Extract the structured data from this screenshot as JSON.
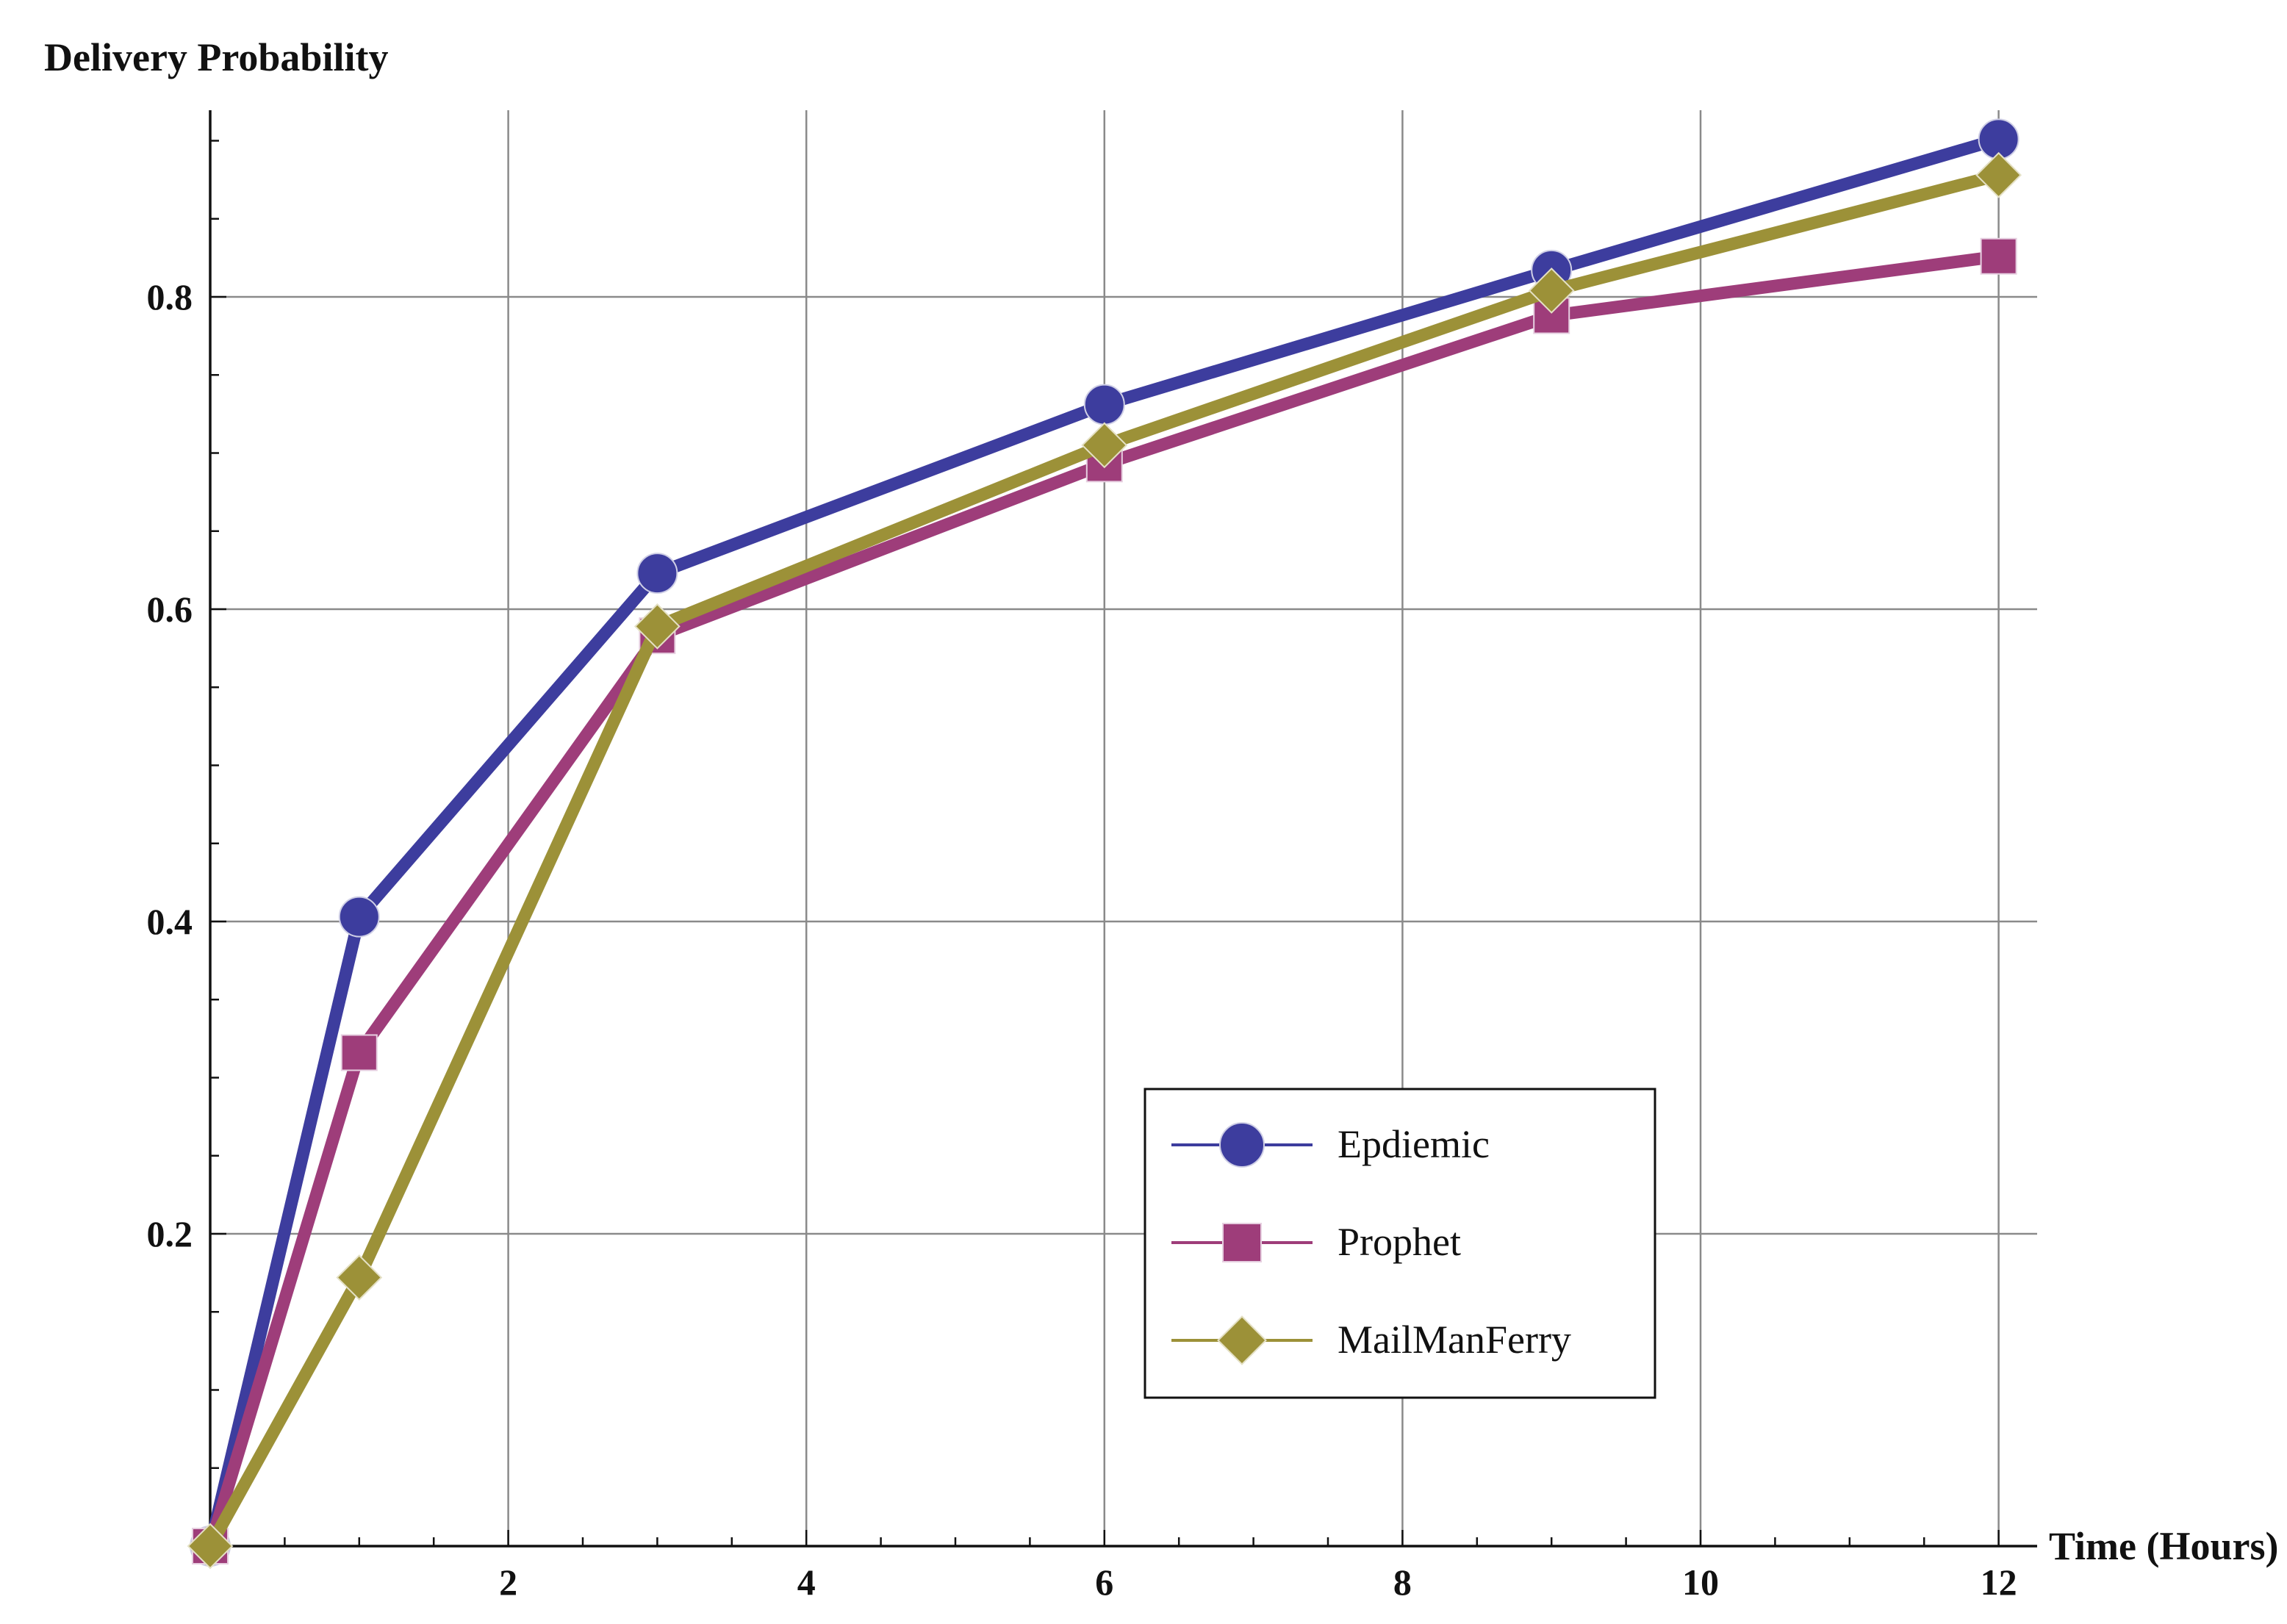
{
  "chart_data": {
    "type": "line",
    "xlabel": "Time (Hours)",
    "ylabel": "Delivery Probability",
    "x": [
      0,
      1,
      3,
      6,
      9,
      12
    ],
    "xlim": [
      0,
      12.3
    ],
    "ylim": [
      0,
      0.92
    ],
    "xticks": [
      2,
      4,
      6,
      8,
      10,
      12
    ],
    "yticks": [
      0.2,
      0.4,
      0.6,
      0.8
    ],
    "x_minor_step": 0.5,
    "y_minor_step": 0.05,
    "grid": true,
    "legend_position": "lower-right",
    "series": [
      {
        "name": "Epdiemic",
        "values": [
          0,
          0.403,
          0.623,
          0.731,
          0.817,
          0.901
        ],
        "color": "#3d3d9e",
        "marker": "circle"
      },
      {
        "name": "Prophet",
        "values": [
          0,
          0.316,
          0.583,
          0.693,
          0.788,
          0.826
        ],
        "color": "#9e3d7a",
        "marker": "square"
      },
      {
        "name": "MailManFerry",
        "values": [
          0,
          0.172,
          0.589,
          0.705,
          0.804,
          0.878
        ],
        "color": "#9c9138",
        "marker": "diamond"
      }
    ]
  }
}
